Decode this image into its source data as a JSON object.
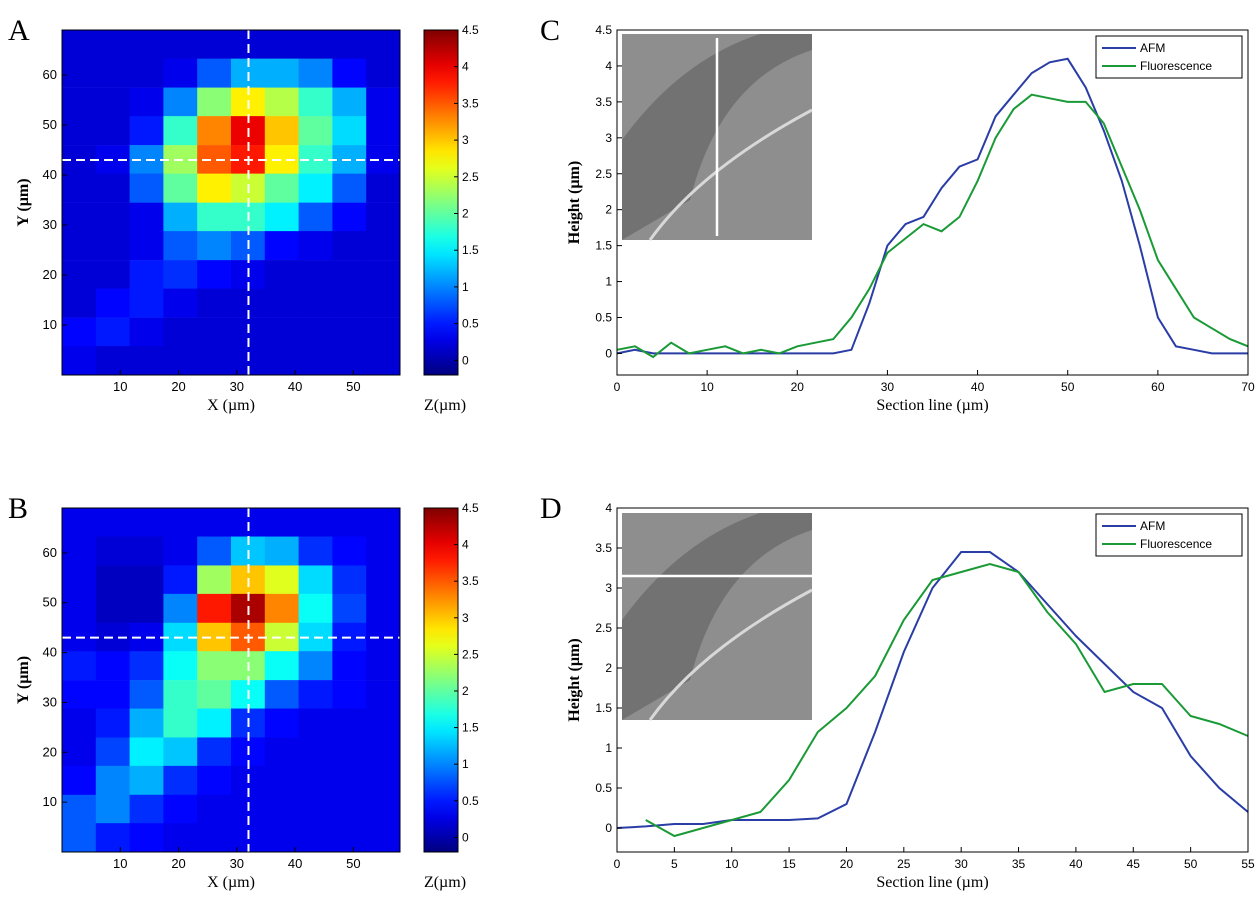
{
  "chart_data": [
    {
      "type": "heatmap",
      "label": "A",
      "xlabel": "X (µm)",
      "ylabel": "Y (µm)",
      "clabel": "Z(µm)",
      "xlim": [
        0,
        58
      ],
      "ylim": [
        0,
        69
      ],
      "xticks": [
        10,
        20,
        30,
        40,
        50
      ],
      "yticks": [
        10,
        20,
        30,
        40,
        50,
        60
      ],
      "clim": [
        -0.2,
        4.5
      ],
      "cticks": [
        0,
        0.5,
        1,
        1.5,
        2,
        2.5,
        3,
        3.5,
        4,
        4.5
      ],
      "crosshair": {
        "x": 32,
        "y": 43
      },
      "x": [
        2.9,
        8.7,
        14.5,
        20.3,
        26.1,
        31.9,
        37.7,
        43.5,
        49.3,
        55.1
      ],
      "y": [
        66.1,
        60.4,
        54.6,
        48.9,
        43.1,
        37.4,
        31.6,
        25.9,
        20.1,
        14.4,
        8.6,
        2.9
      ],
      "z": [
        [
          0.2,
          0.2,
          0.2,
          0.2,
          0.2,
          0.2,
          0.2,
          0.2,
          0.2,
          0.2
        ],
        [
          0.2,
          0.2,
          0.2,
          0.3,
          0.8,
          1.2,
          1.2,
          1.0,
          0.4,
          0.2
        ],
        [
          0.2,
          0.2,
          0.3,
          1.0,
          2.2,
          2.8,
          2.4,
          1.8,
          1.2,
          0.3
        ],
        [
          0.2,
          0.2,
          0.5,
          1.8,
          3.3,
          4.0,
          3.0,
          2.0,
          1.4,
          0.3
        ],
        [
          0.2,
          0.3,
          1.0,
          2.3,
          3.5,
          3.8,
          2.8,
          1.8,
          1.2,
          0.3
        ],
        [
          0.2,
          0.2,
          0.8,
          2.0,
          2.8,
          2.5,
          2.0,
          1.5,
          0.8,
          0.2
        ],
        [
          0.2,
          0.2,
          0.3,
          1.2,
          1.8,
          1.8,
          1.5,
          0.8,
          0.4,
          0.2
        ],
        [
          0.2,
          0.2,
          0.3,
          0.8,
          1.0,
          0.8,
          0.4,
          0.3,
          0.2,
          0.2
        ],
        [
          0.2,
          0.2,
          0.5,
          0.6,
          0.4,
          0.3,
          0.2,
          0.2,
          0.2,
          0.2
        ],
        [
          0.2,
          0.4,
          0.5,
          0.3,
          0.2,
          0.2,
          0.2,
          0.2,
          0.2,
          0.2
        ],
        [
          0.4,
          0.5,
          0.3,
          0.2,
          0.2,
          0.2,
          0.2,
          0.2,
          0.2,
          0.2
        ],
        [
          0.3,
          0.2,
          0.2,
          0.2,
          0.2,
          0.2,
          0.2,
          0.2,
          0.2,
          0.2
        ]
      ]
    },
    {
      "type": "heatmap",
      "label": "B",
      "xlabel": "X (µm)",
      "ylabel": "Y (µm)",
      "clabel": "Z(µm)",
      "xlim": [
        0,
        58
      ],
      "ylim": [
        0,
        69
      ],
      "xticks": [
        10,
        20,
        30,
        40,
        50
      ],
      "yticks": [
        10,
        20,
        30,
        40,
        50,
        60
      ],
      "clim": [
        -0.2,
        4.5
      ],
      "cticks": [
        0,
        0.5,
        1,
        1.5,
        2,
        2.5,
        3,
        3.5,
        4,
        4.5
      ],
      "crosshair": {
        "x": 32,
        "y": 43
      },
      "x": [
        2.9,
        8.7,
        14.5,
        20.3,
        26.1,
        31.9,
        37.7,
        43.5,
        49.3,
        55.1
      ],
      "y": [
        66.1,
        60.4,
        54.6,
        48.9,
        43.1,
        37.4,
        31.6,
        25.9,
        20.1,
        14.4,
        8.6,
        2.9
      ],
      "z": [
        [
          0.3,
          0.3,
          0.3,
          0.3,
          0.3,
          0.3,
          0.3,
          0.3,
          0.3,
          0.3
        ],
        [
          0.3,
          0.2,
          0.2,
          0.3,
          0.8,
          1.3,
          1.2,
          0.6,
          0.4,
          0.3
        ],
        [
          0.3,
          0.1,
          0.1,
          0.5,
          2.3,
          3.0,
          2.6,
          1.4,
          0.6,
          0.3
        ],
        [
          0.3,
          0.1,
          0.1,
          1.0,
          3.8,
          4.3,
          3.3,
          1.6,
          0.7,
          0.3
        ],
        [
          0.3,
          0.2,
          0.3,
          1.4,
          3.0,
          3.5,
          2.5,
          1.4,
          0.5,
          0.3
        ],
        [
          0.5,
          0.4,
          0.6,
          1.6,
          2.2,
          2.2,
          1.6,
          1.0,
          0.4,
          0.3
        ],
        [
          0.4,
          0.4,
          0.8,
          1.8,
          2.0,
          1.6,
          0.8,
          0.5,
          0.4,
          0.3
        ],
        [
          0.3,
          0.5,
          1.2,
          1.8,
          1.5,
          0.6,
          0.4,
          0.3,
          0.3,
          0.3
        ],
        [
          0.3,
          0.7,
          1.5,
          1.3,
          0.6,
          0.4,
          0.3,
          0.3,
          0.3,
          0.3
        ],
        [
          0.4,
          1.0,
          1.2,
          0.6,
          0.4,
          0.3,
          0.3,
          0.3,
          0.3,
          0.3
        ],
        [
          0.8,
          1.0,
          0.6,
          0.4,
          0.3,
          0.3,
          0.3,
          0.3,
          0.3,
          0.3
        ],
        [
          0.8,
          0.5,
          0.4,
          0.3,
          0.3,
          0.3,
          0.3,
          0.3,
          0.3,
          0.3
        ]
      ]
    },
    {
      "type": "line",
      "label": "C",
      "xlabel": "Section line (µm)",
      "ylabel": "Height (µm)",
      "xlim": [
        0,
        70
      ],
      "ylim": [
        -0.3,
        4.5
      ],
      "xticks": [
        0,
        10,
        20,
        30,
        40,
        50,
        60,
        70
      ],
      "yticks": [
        0,
        0.5,
        1,
        1.5,
        2,
        2.5,
        3,
        3.5,
        4,
        4.5
      ],
      "legend": "upper right",
      "x": [
        0,
        2,
        4,
        6,
        8,
        10,
        12,
        14,
        16,
        18,
        20,
        22,
        24,
        26,
        28,
        30,
        32,
        34,
        36,
        38,
        40,
        42,
        44,
        46,
        48,
        50,
        52,
        54,
        56,
        58,
        60,
        62,
        64,
        66,
        68,
        70
      ],
      "series": [
        {
          "name": "AFM",
          "color": "#2a3da6",
          "values": [
            0,
            0.05,
            0,
            0,
            0,
            0,
            0,
            0,
            0,
            0,
            0,
            0,
            0,
            0.05,
            0.7,
            1.5,
            1.8,
            1.9,
            2.3,
            2.6,
            2.7,
            3.3,
            3.6,
            3.9,
            4.05,
            4.1,
            3.7,
            3.1,
            2.4,
            1.5,
            0.5,
            0.1,
            0.05,
            0,
            0,
            0
          ]
        },
        {
          "name": "Fluorescence",
          "color": "#1a9a36",
          "values": [
            0.05,
            0.1,
            -0.05,
            0.15,
            0,
            0.05,
            0.1,
            0,
            0.05,
            0,
            0.1,
            0.15,
            0.2,
            0.5,
            0.9,
            1.4,
            1.6,
            1.8,
            1.7,
            1.9,
            2.4,
            3.0,
            3.4,
            3.6,
            3.55,
            3.5,
            3.5,
            3.2,
            2.6,
            2.0,
            1.3,
            0.9,
            0.5,
            0.35,
            0.2,
            0.1
          ]
        }
      ]
    },
    {
      "type": "line",
      "label": "D",
      "xlabel": "Section line (µm)",
      "ylabel": "Height (µm)",
      "xlim": [
        0,
        55
      ],
      "ylim": [
        -0.3,
        4
      ],
      "xticks": [
        0,
        5,
        10,
        15,
        20,
        25,
        30,
        35,
        40,
        45,
        50,
        55
      ],
      "yticks": [
        0,
        0.5,
        1,
        1.5,
        2,
        2.5,
        3,
        3.5,
        4
      ],
      "legend": "upper right",
      "x": [
        0,
        2.5,
        5,
        7.5,
        10,
        12.5,
        15,
        17.5,
        20,
        22.5,
        25,
        27.5,
        30,
        32.5,
        35,
        37.5,
        40,
        42.5,
        45,
        47.5,
        50,
        52.5,
        55
      ],
      "series": [
        {
          "name": "AFM",
          "color": "#2a3da6",
          "values": [
            0,
            0.02,
            0.05,
            0.05,
            0.1,
            0.1,
            0.1,
            0.12,
            0.3,
            1.2,
            2.2,
            3.0,
            3.45,
            3.45,
            3.2,
            2.8,
            2.4,
            2.05,
            1.7,
            1.5,
            0.9,
            0.5,
            0.2
          ]
        },
        {
          "name": "Fluorescence",
          "color": "#1a9a36",
          "values": [
            null,
            0.1,
            -0.1,
            0,
            0.1,
            0.2,
            0.6,
            1.2,
            1.5,
            1.9,
            2.6,
            3.1,
            3.2,
            3.3,
            3.2,
            2.7,
            2.3,
            1.7,
            1.8,
            1.8,
            1.4,
            1.3,
            1.15
          ]
        }
      ]
    }
  ]
}
